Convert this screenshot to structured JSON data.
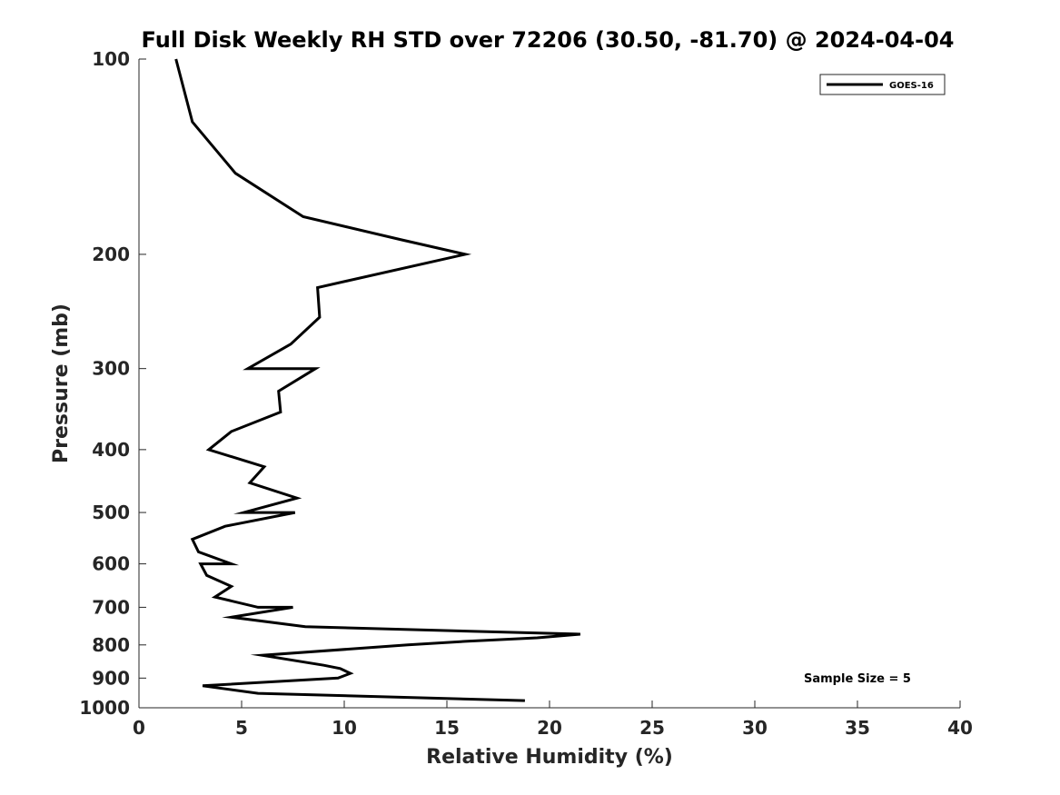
{
  "chart_data": {
    "type": "line",
    "title": "Full Disk Weekly RH STD over 72206 (30.50, -81.70) @ 2024-04-04",
    "xlabel": "Relative Humidity (%)",
    "ylabel": "Pressure (mb)",
    "xlim": [
      0,
      40
    ],
    "ylim": [
      100,
      1000
    ],
    "y_scale": "log",
    "y_reversed": true,
    "x_ticks": [
      0,
      5,
      10,
      15,
      20,
      25,
      30,
      35,
      40
    ],
    "y_ticks": [
      100,
      200,
      300,
      400,
      500,
      600,
      700,
      800,
      900,
      1000
    ],
    "grid": false,
    "legend_position": "top-right",
    "series": [
      {
        "name": "GOES-16",
        "color": "#000000",
        "points": [
          [
            1.8,
            100
          ],
          [
            2.6,
            125
          ],
          [
            4.7,
            150
          ],
          [
            8.0,
            175
          ],
          [
            12.8,
            190
          ],
          [
            15.9,
            200
          ],
          [
            8.7,
            225
          ],
          [
            8.8,
            250
          ],
          [
            7.4,
            275
          ],
          [
            5.3,
            300
          ],
          [
            8.6,
            300
          ],
          [
            6.8,
            325
          ],
          [
            6.9,
            350
          ],
          [
            4.5,
            375
          ],
          [
            3.4,
            400
          ],
          [
            6.1,
            425
          ],
          [
            5.4,
            450
          ],
          [
            7.7,
            475
          ],
          [
            5.1,
            500
          ],
          [
            7.6,
            500
          ],
          [
            4.2,
            525
          ],
          [
            2.6,
            550
          ],
          [
            2.9,
            575
          ],
          [
            4.5,
            600
          ],
          [
            3.0,
            600
          ],
          [
            3.3,
            625
          ],
          [
            4.5,
            650
          ],
          [
            3.7,
            675
          ],
          [
            5.8,
            700
          ],
          [
            7.5,
            700
          ],
          [
            4.5,
            725
          ],
          [
            8.1,
            750
          ],
          [
            21.5,
            770
          ],
          [
            19.4,
            780
          ],
          [
            15.9,
            790
          ],
          [
            13.1,
            800
          ],
          [
            6.0,
            830
          ],
          [
            9.0,
            860
          ],
          [
            9.8,
            870
          ],
          [
            10.3,
            885
          ],
          [
            9.7,
            900
          ],
          [
            3.1,
            925
          ],
          [
            5.8,
            950
          ],
          [
            18.8,
            975
          ]
        ]
      }
    ],
    "annotations": [
      "Sample Size = 5"
    ]
  }
}
